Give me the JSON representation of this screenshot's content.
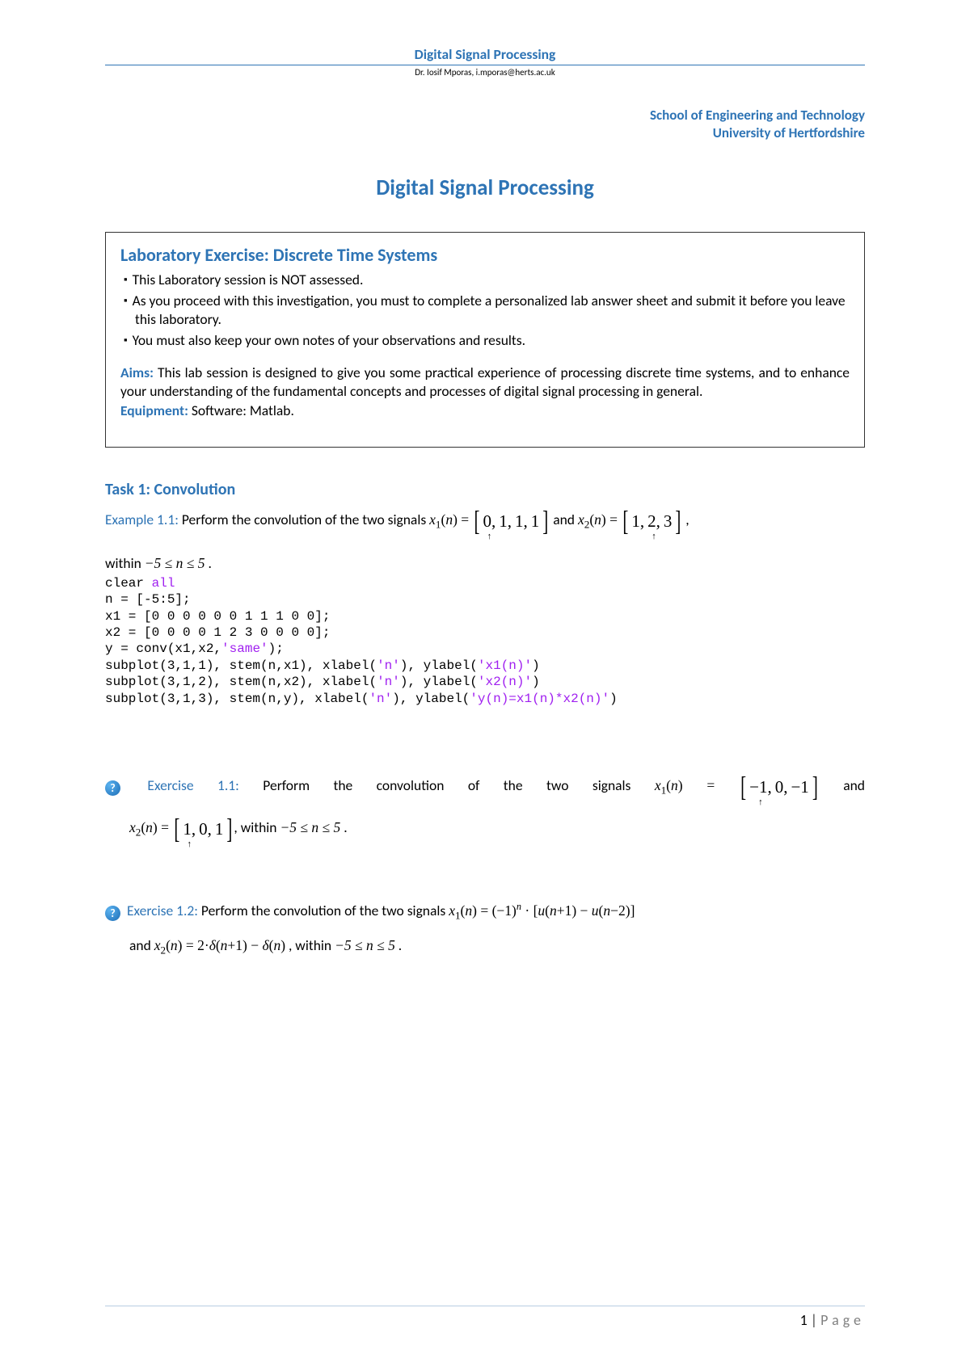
{
  "header": {
    "title": "Digital Signal Processing",
    "author": "Dr. Iosif Mporas, i.mporas@herts.ac.uk"
  },
  "school": {
    "line1": "School of Engineering and Technology",
    "line2": "University of Hertfordshire"
  },
  "main_title": "Digital Signal Processing",
  "lab_box": {
    "title": "Laboratory Exercise: Discrete Time Systems",
    "bullet1": "This Laboratory session is NOT assessed.",
    "bullet2": "As you proceed with this investigation, you must to complete a personalized lab answer sheet and submit it before you leave this laboratory.",
    "bullet3": "You must also keep your own notes of your observations and results.",
    "aims_label": "Aims:",
    "aims_text": " This lab session is designed to give you some practical experience of processing discrete time systems, and to enhance your understanding of the fundamental concepts and processes of digital signal processing in general.",
    "equip_label": "Equipment:",
    "equip_text": " Software: Matlab."
  },
  "task1": {
    "heading": "Task 1: Convolution",
    "example_label": "Example 1.1:",
    "example_text_a": " Perform the convolution of the two signals  ",
    "example_and": "  and  ",
    "example_comma": " ,",
    "within_text_a": "within  ",
    "within_range": "−5 ≤ n ≤ 5",
    "within_dot": " .",
    "x1n": "x",
    "x1sub": "1",
    "paren_n": "n",
    "seq1": [
      "0",
      "1",
      "1",
      "1"
    ],
    "seq1_arrow_idx": 0,
    "x2sub": "2",
    "seq2": [
      "1",
      "2",
      "3"
    ],
    "seq2_arrow_idx": 1,
    "code": {
      "l1a": "clear ",
      "l1b": "all",
      "l2": "n = [-5:5];",
      "l3": "x1 = [0 0 0 0 0 0 1 1 1 0 0];",
      "l4": "x2 = [0 0 0 0 1 2 3 0 0 0 0];",
      "l5a": "y = conv(x1,x2,",
      "l5b": "'same'",
      "l5c": ");",
      "l6a": "subplot(3,1,1), stem(n,x1), xlabel(",
      "l6b": "'n'",
      "l6c": "), ylabel(",
      "l6d": "'x1(n)'",
      "l6e": ")",
      "l7a": "subplot(3,1,2), stem(n,x2), xlabel(",
      "l7b": "'n'",
      "l7c": "), ylabel(",
      "l7d": "'x2(n)'",
      "l7e": ")",
      "l8a": "subplot(3,1,3), stem(n,y), xlabel(",
      "l8b": "'n'",
      "l8c": "), ylabel(",
      "l8d": "'y(n)=x1(n)*x2(n)'",
      "l8e": ")"
    }
  },
  "ex11": {
    "label": "Exercise 1.1:",
    "text_a": " Perform the convolution of the two signals ",
    "and": " and",
    "seq1": [
      "−1",
      "0",
      "−1"
    ],
    "seq1_arrow_idx": 0,
    "seq2": [
      "1",
      "0",
      "1"
    ],
    "seq2_arrow_idx": 0,
    "within_a": ", within  ",
    "within_range": "−5 ≤ n ≤ 5",
    "within_dot": " ."
  },
  "ex12": {
    "label": "Exercise 1.2:",
    "text_a": " Perform the convolution of the two signals  ",
    "formula1_a": "x",
    "formula1_sub": "1",
    "formula1_b": "(n) = (−1)",
    "formula1_sup": "n",
    "formula1_c": " · [u(n+1) − u(n−2)]",
    "line2_a": "and  ",
    "formula2_a": "x",
    "formula2_sub": "2",
    "formula2_b": "(n) = 2·δ(n+1) − δ(n)",
    "line2_b": " , within  ",
    "within_range": "−5 ≤ n ≤ 5",
    "line2_c": " ."
  },
  "footer": {
    "page_num": "1",
    "sep": " | ",
    "label": "Page"
  },
  "colors": {
    "primary_blue": "#2e74b5",
    "code_blue": "#0000ff",
    "code_purple": "#a020f0"
  }
}
